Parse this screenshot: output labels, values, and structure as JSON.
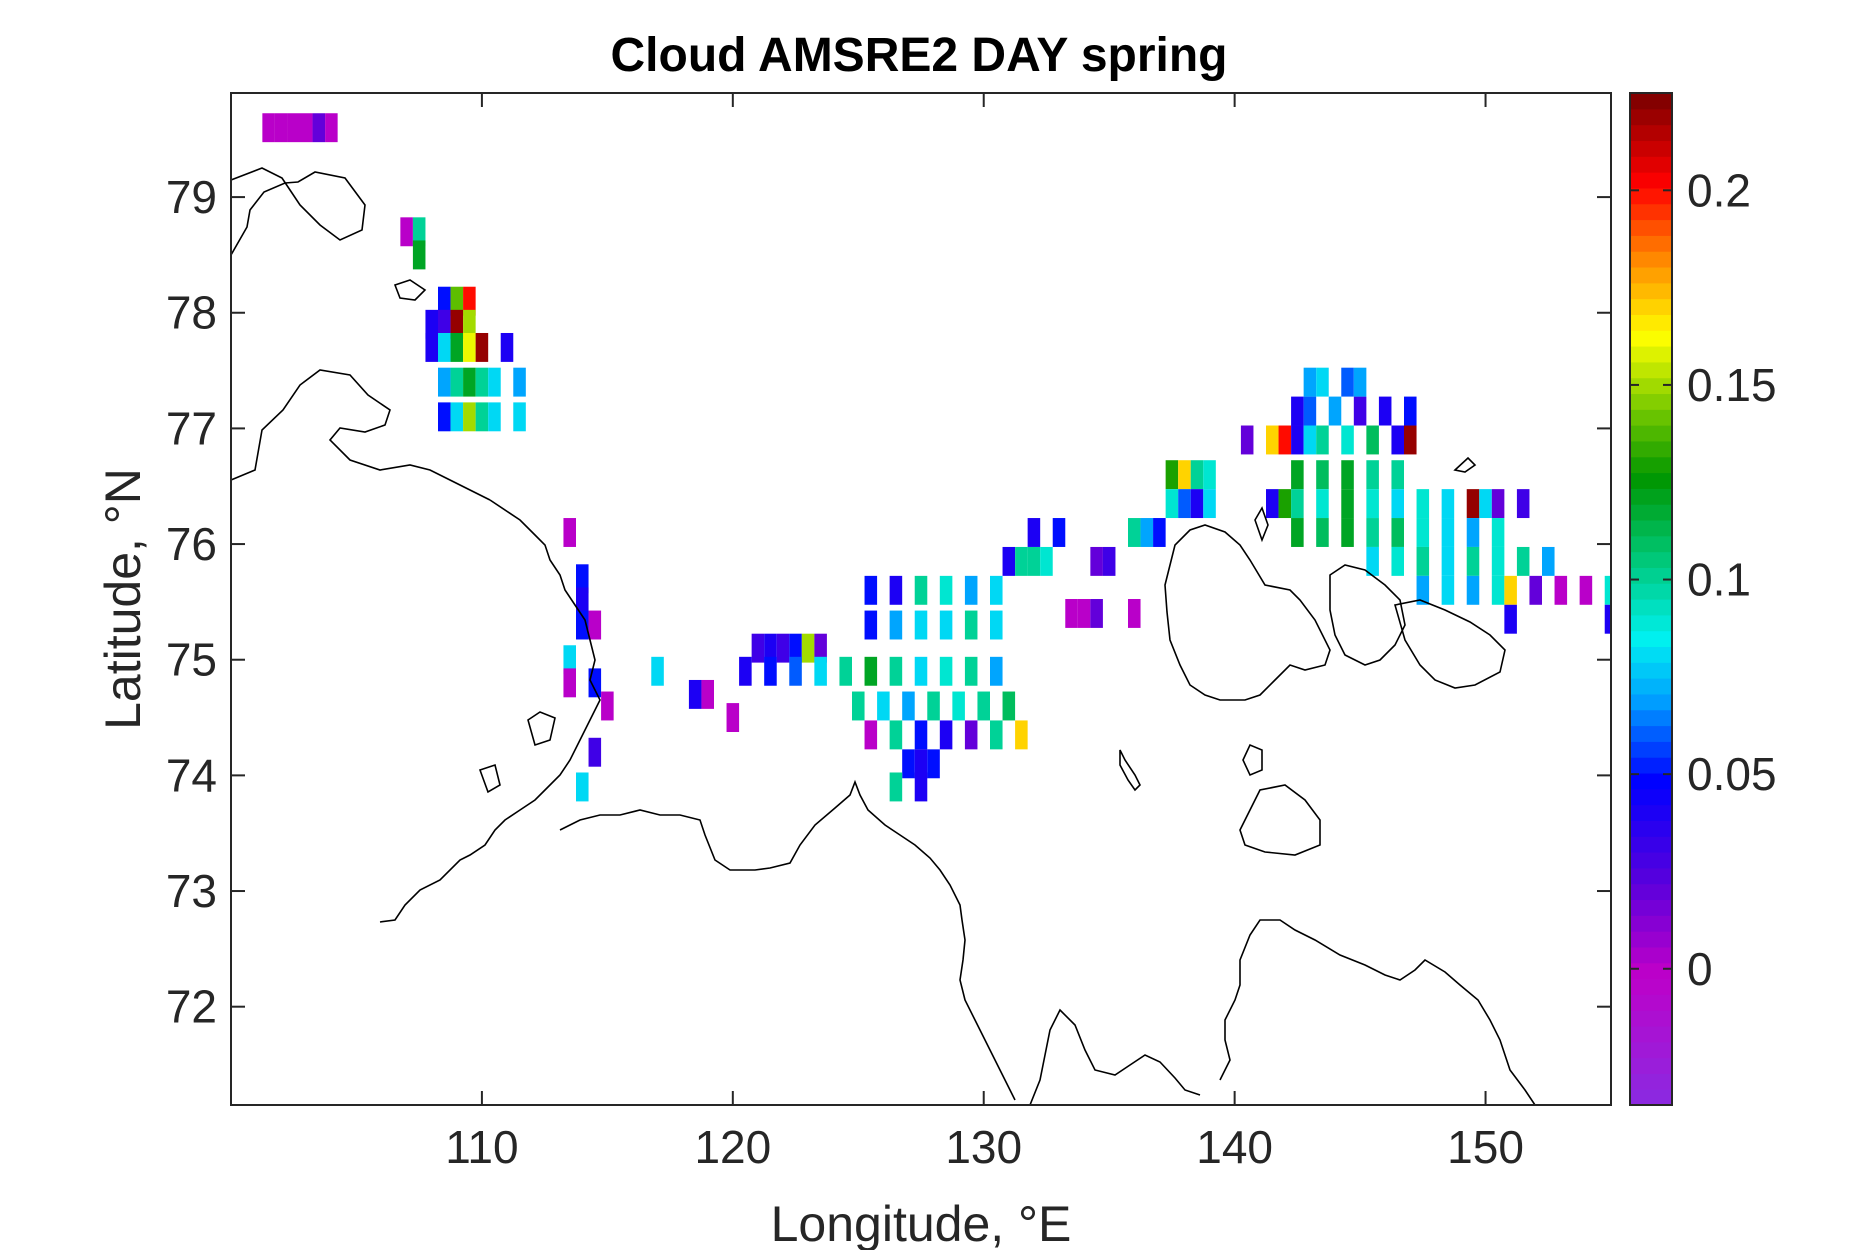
{
  "chart_data": {
    "type": "heatmap",
    "title": "Cloud AMSRE2 DAY spring",
    "xlabel": "Longitude, °E",
    "ylabel": "Latitude, °N",
    "xlim": [
      100,
      155
    ],
    "ylim": [
      71.15,
      79.9
    ],
    "xticks": [
      110,
      120,
      130,
      140,
      150
    ],
    "xtick_labels": [
      "110",
      "120",
      "130",
      "140",
      "150"
    ],
    "yticks": [
      72,
      73,
      74,
      75,
      76,
      77,
      78,
      79
    ],
    "ytick_labels": [
      "72",
      "73",
      "74",
      "75",
      "76",
      "77",
      "78",
      "79"
    ],
    "colorbar": {
      "range": [
        -0.035,
        0.225
      ],
      "ticks": [
        0,
        0.05,
        0.1,
        0.15,
        0.2
      ],
      "tick_labels": [
        "0",
        "0.05",
        "0.1",
        "0.15",
        "0.2"
      ],
      "colormap": "jet-like with purple low end"
    },
    "cell_size": {
      "dlon": 0.5,
      "dlat": 0.25
    },
    "cells": [
      [
        101.5,
        79.6,
        0.0
      ],
      [
        102.0,
        79.6,
        0.0
      ],
      [
        102.5,
        79.6,
        0.0
      ],
      [
        103.0,
        79.6,
        0.0
      ],
      [
        103.5,
        79.6,
        0.02
      ],
      [
        104.0,
        79.6,
        0.0
      ],
      [
        107.0,
        78.7,
        0.0
      ],
      [
        107.5,
        78.7,
        0.1
      ],
      [
        107.5,
        78.5,
        0.12
      ],
      [
        108.5,
        78.1,
        0.05
      ],
      [
        109.0,
        78.1,
        0.14
      ],
      [
        109.5,
        78.1,
        0.2
      ],
      [
        108.0,
        77.9,
        0.04
      ],
      [
        108.5,
        77.9,
        0.03
      ],
      [
        109.0,
        77.9,
        0.22
      ],
      [
        109.5,
        77.9,
        0.15
      ],
      [
        108.0,
        77.7,
        0.04
      ],
      [
        108.5,
        77.7,
        0.08
      ],
      [
        109.0,
        77.7,
        0.12
      ],
      [
        109.5,
        77.7,
        0.16
      ],
      [
        110.0,
        77.7,
        0.22
      ],
      [
        111.0,
        77.7,
        0.04
      ],
      [
        108.5,
        77.4,
        0.07
      ],
      [
        109.0,
        77.4,
        0.1
      ],
      [
        109.5,
        77.4,
        0.12
      ],
      [
        110.0,
        77.4,
        0.1
      ],
      [
        110.5,
        77.4,
        0.08
      ],
      [
        111.5,
        77.4,
        0.07
      ],
      [
        108.5,
        77.1,
        0.05
      ],
      [
        109.0,
        77.1,
        0.08
      ],
      [
        109.5,
        77.1,
        0.15
      ],
      [
        110.0,
        77.1,
        0.1
      ],
      [
        110.5,
        77.1,
        0.08
      ],
      [
        111.5,
        77.1,
        0.08
      ],
      [
        113.5,
        76.1,
        0.0
      ],
      [
        114.0,
        75.7,
        0.05
      ],
      [
        114.0,
        75.5,
        0.04
      ],
      [
        114.5,
        75.3,
        0.0
      ],
      [
        114.0,
        75.3,
        0.05
      ],
      [
        113.5,
        75.0,
        0.08
      ],
      [
        113.5,
        74.8,
        0.0
      ],
      [
        114.5,
        74.8,
        0.05
      ],
      [
        115.0,
        74.6,
        0.0
      ],
      [
        114.5,
        74.2,
        0.03
      ],
      [
        114.0,
        73.9,
        0.08
      ],
      [
        117.0,
        74.9,
        0.08
      ],
      [
        118.5,
        74.7,
        0.04
      ],
      [
        119.0,
        74.7,
        0.0
      ],
      [
        120.0,
        74.5,
        0.0
      ],
      [
        121.0,
        75.1,
        0.03
      ],
      [
        121.5,
        75.1,
        0.04
      ],
      [
        122.0,
        75.1,
        0.03
      ],
      [
        122.5,
        75.1,
        0.05
      ],
      [
        123.0,
        75.1,
        0.15
      ],
      [
        123.5,
        75.1,
        0.02
      ],
      [
        120.5,
        74.9,
        0.04
      ],
      [
        121.5,
        74.9,
        0.05
      ],
      [
        122.5,
        74.9,
        0.06
      ],
      [
        123.5,
        74.9,
        0.08
      ],
      [
        124.5,
        74.9,
        0.1
      ],
      [
        125.5,
        74.9,
        0.12
      ],
      [
        126.5,
        74.9,
        0.1
      ],
      [
        127.5,
        74.9,
        0.08
      ],
      [
        128.5,
        74.9,
        0.09
      ],
      [
        129.5,
        74.9,
        0.1
      ],
      [
        130.5,
        74.9,
        0.07
      ],
      [
        125.0,
        74.6,
        0.1
      ],
      [
        126.0,
        74.6,
        0.08
      ],
      [
        127.0,
        74.6,
        0.07
      ],
      [
        128.0,
        74.6,
        0.1
      ],
      [
        129.0,
        74.6,
        0.09
      ],
      [
        130.0,
        74.6,
        0.1
      ],
      [
        131.0,
        74.6,
        0.11
      ],
      [
        125.5,
        74.35,
        0.0
      ],
      [
        126.5,
        74.35,
        0.1
      ],
      [
        127.5,
        74.35,
        0.05
      ],
      [
        128.5,
        74.35,
        0.04
      ],
      [
        129.5,
        74.35,
        0.02
      ],
      [
        130.5,
        74.35,
        0.1
      ],
      [
        131.5,
        74.35,
        0.17
      ],
      [
        127.0,
        74.1,
        0.05
      ],
      [
        127.5,
        74.1,
        0.04
      ],
      [
        128.0,
        74.1,
        0.05
      ],
      [
        126.5,
        73.9,
        0.1
      ],
      [
        127.5,
        73.9,
        0.04
      ],
      [
        125.5,
        75.3,
        0.05
      ],
      [
        126.5,
        75.3,
        0.07
      ],
      [
        127.5,
        75.3,
        0.08
      ],
      [
        128.5,
        75.3,
        0.08
      ],
      [
        129.5,
        75.3,
        0.1
      ],
      [
        130.5,
        75.3,
        0.08
      ],
      [
        125.5,
        75.6,
        0.05
      ],
      [
        126.5,
        75.6,
        0.04
      ],
      [
        127.5,
        75.6,
        0.1
      ],
      [
        128.5,
        75.6,
        0.09
      ],
      [
        129.5,
        75.6,
        0.07
      ],
      [
        130.5,
        75.6,
        0.08
      ],
      [
        131.0,
        75.85,
        0.04
      ],
      [
        131.5,
        75.85,
        0.1
      ],
      [
        132.0,
        75.85,
        0.1
      ],
      [
        132.5,
        75.85,
        0.09
      ],
      [
        134.5,
        75.85,
        0.02
      ],
      [
        135.0,
        75.85,
        0.03
      ],
      [
        132.0,
        76.1,
        0.04
      ],
      [
        133.0,
        76.1,
        0.05
      ],
      [
        136.0,
        76.1,
        0.1
      ],
      [
        136.5,
        76.1,
        0.07
      ],
      [
        137.0,
        76.1,
        0.05
      ],
      [
        134.0,
        75.4,
        0.0
      ],
      [
        134.5,
        75.4,
        0.02
      ],
      [
        133.5,
        75.4,
        0.0
      ],
      [
        136.0,
        75.4,
        0.0
      ],
      [
        137.5,
        76.6,
        0.13
      ],
      [
        138.0,
        76.6,
        0.17
      ],
      [
        138.5,
        76.6,
        0.1
      ],
      [
        139.0,
        76.6,
        0.09
      ],
      [
        137.5,
        76.35,
        0.09
      ],
      [
        138.0,
        76.35,
        0.06
      ],
      [
        138.5,
        76.35,
        0.04
      ],
      [
        139.0,
        76.35,
        0.08
      ],
      [
        140.5,
        76.9,
        0.02
      ],
      [
        141.5,
        76.9,
        0.17
      ],
      [
        142.0,
        76.9,
        0.2
      ],
      [
        142.5,
        76.9,
        0.04
      ],
      [
        143.0,
        76.9,
        0.08
      ],
      [
        143.5,
        76.9,
        0.1
      ],
      [
        144.5,
        76.9,
        0.09
      ],
      [
        145.5,
        76.9,
        0.11
      ],
      [
        146.5,
        76.9,
        0.04
      ],
      [
        147.0,
        76.9,
        0.22
      ],
      [
        142.5,
        77.15,
        0.04
      ],
      [
        143.0,
        77.15,
        0.06
      ],
      [
        144.0,
        77.15,
        0.07
      ],
      [
        145.0,
        77.15,
        0.03
      ],
      [
        146.0,
        77.15,
        0.04
      ],
      [
        147.0,
        77.15,
        0.05
      ],
      [
        143.0,
        77.4,
        0.07
      ],
      [
        143.5,
        77.4,
        0.08
      ],
      [
        144.5,
        77.4,
        0.06
      ],
      [
        145.0,
        77.4,
        0.07
      ],
      [
        142.5,
        76.6,
        0.12
      ],
      [
        143.5,
        76.6,
        0.11
      ],
      [
        144.5,
        76.6,
        0.12
      ],
      [
        145.5,
        76.6,
        0.1
      ],
      [
        146.5,
        76.6,
        0.1
      ],
      [
        141.5,
        76.35,
        0.04
      ],
      [
        142.0,
        76.35,
        0.13
      ],
      [
        142.5,
        76.35,
        0.1
      ],
      [
        143.5,
        76.35,
        0.09
      ],
      [
        144.5,
        76.35,
        0.12
      ],
      [
        145.5,
        76.35,
        0.09
      ],
      [
        146.5,
        76.35,
        0.08
      ],
      [
        147.5,
        76.35,
        0.09
      ],
      [
        148.5,
        76.35,
        0.08
      ],
      [
        149.5,
        76.35,
        0.22
      ],
      [
        150.0,
        76.35,
        0.08
      ],
      [
        150.5,
        76.35,
        0.02
      ],
      [
        151.5,
        76.35,
        0.03
      ],
      [
        142.5,
        76.1,
        0.12
      ],
      [
        143.5,
        76.1,
        0.11
      ],
      [
        144.5,
        76.1,
        0.12
      ],
      [
        145.5,
        76.1,
        0.1
      ],
      [
        146.5,
        76.1,
        0.11
      ],
      [
        147.5,
        76.1,
        0.09
      ],
      [
        148.5,
        76.1,
        0.08
      ],
      [
        149.5,
        76.1,
        0.07
      ],
      [
        150.5,
        76.1,
        0.09
      ],
      [
        145.5,
        75.85,
        0.08
      ],
      [
        146.5,
        75.85,
        0.09
      ],
      [
        147.5,
        75.85,
        0.1
      ],
      [
        148.5,
        75.85,
        0.08
      ],
      [
        149.5,
        75.85,
        0.1
      ],
      [
        150.5,
        75.85,
        0.09
      ],
      [
        151.5,
        75.85,
        0.1
      ],
      [
        152.5,
        75.85,
        0.07
      ],
      [
        147.5,
        75.6,
        0.07
      ],
      [
        148.5,
        75.6,
        0.08
      ],
      [
        149.5,
        75.6,
        0.07
      ],
      [
        150.5,
        75.6,
        0.09
      ],
      [
        151.0,
        75.6,
        0.17
      ],
      [
        151.0,
        75.35,
        0.04
      ],
      [
        152.0,
        75.6,
        0.02
      ],
      [
        153.0,
        75.6,
        0.0
      ],
      [
        154.0,
        75.6,
        0.0
      ],
      [
        155.0,
        75.6,
        0.09
      ],
      [
        155.0,
        75.35,
        0.04
      ]
    ]
  }
}
